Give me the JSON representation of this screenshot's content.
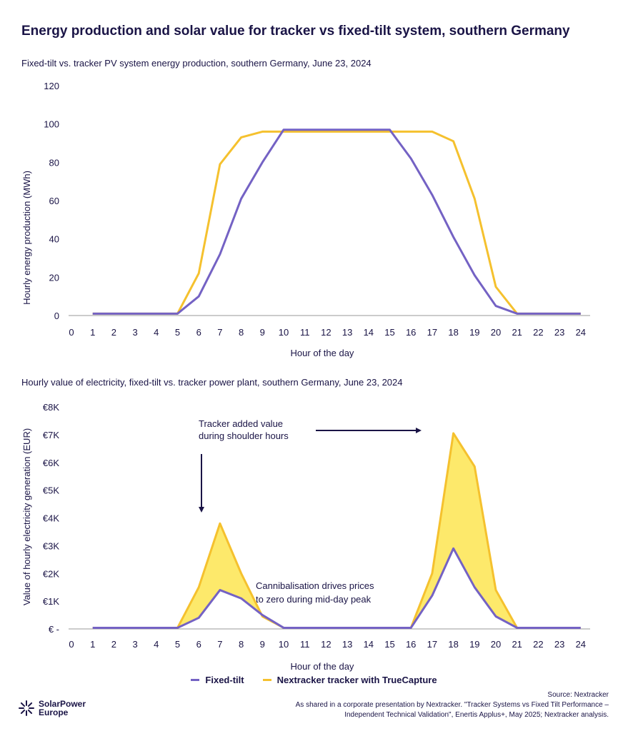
{
  "title": "Energy production and solar value for tracker vs fixed-tilt system, southern Germany",
  "colors": {
    "fixed": "#7462c4",
    "tracker": "#f5c12e",
    "fill": "#fde96b",
    "text": "#1a1446",
    "arrow": "#1a1446"
  },
  "legend": {
    "fixed": "Fixed-tilt",
    "tracker": "Nextracker tracker with TrueCapture"
  },
  "annotations": {
    "shoulder_line1": "Tracker added value",
    "shoulder_line2": "during shoulder hours",
    "cannibal_line1": "Cannibalisation drives prices",
    "cannibal_line2": "to zero during mid-day peak"
  },
  "source": {
    "line1": "Source: Nextracker",
    "line2": "As shared in a corporate presentation by Nextracker. \"Tracker Systems vs Fixed Tilt Performance –",
    "line3": "Independent Technical Validation\", Enertis Applus+, May 2025; Nextracker analysis."
  },
  "logo": {
    "line1": "SolarPower",
    "line2": "Europe",
    "icon": "sun-burst-icon"
  },
  "chart_data": [
    {
      "type": "line",
      "title": "Fixed-tilt vs. tracker PV system energy production, southern Germany, June 23, 2024",
      "xlabel": "Hour of the day",
      "ylabel": "Hourly energy production (MWh)",
      "ylim": [
        0,
        120
      ],
      "yticks": [
        0,
        20,
        40,
        60,
        80,
        100,
        120
      ],
      "ytick_labels": [
        "0",
        "20",
        "40",
        "60",
        "80",
        "100",
        "120"
      ],
      "xticks": [
        0,
        1,
        2,
        3,
        4,
        5,
        6,
        7,
        8,
        9,
        10,
        11,
        12,
        13,
        14,
        15,
        16,
        17,
        18,
        19,
        20,
        21,
        22,
        23,
        24
      ],
      "x": [
        1,
        2,
        3,
        4,
        5,
        6,
        7,
        8,
        9,
        10,
        11,
        12,
        13,
        14,
        15,
        16,
        17,
        18,
        19,
        20,
        21,
        22,
        23,
        24
      ],
      "series": [
        {
          "name": "Fixed-tilt",
          "values": [
            1,
            1,
            1,
            1,
            1,
            10,
            32,
            61,
            80,
            97,
            97,
            97,
            97,
            97,
            97,
            82,
            63,
            41,
            21,
            5,
            1,
            1,
            1,
            1
          ]
        },
        {
          "name": "Nextracker tracker with TrueCapture",
          "values": [
            1,
            1,
            1,
            1,
            1,
            22,
            79,
            93,
            96,
            96,
            96,
            96,
            96,
            96,
            96,
            96,
            96,
            91,
            61,
            15,
            1,
            1,
            1,
            1
          ]
        }
      ],
      "grid": false,
      "legend": "bottom-center"
    },
    {
      "type": "area",
      "title": "Hourly value of electricity, fixed-tilt vs. tracker power plant, southern Germany, June 23, 2024",
      "xlabel": "Hour of the day",
      "ylabel": "Value of hourly  electricity generation (EUR)",
      "ylim": [
        0,
        8000
      ],
      "yticks": [
        0,
        1000,
        2000,
        3000,
        4000,
        5000,
        6000,
        7000,
        8000
      ],
      "ytick_labels": [
        "€ -",
        "€1K",
        "€2K",
        "€3K",
        "€4K",
        "€5K",
        "€6K",
        "€7K",
        "€8K"
      ],
      "xticks": [
        0,
        1,
        2,
        3,
        4,
        5,
        6,
        7,
        8,
        9,
        10,
        11,
        12,
        13,
        14,
        15,
        16,
        17,
        18,
        19,
        20,
        21,
        22,
        23,
        24
      ],
      "x": [
        1,
        2,
        3,
        4,
        5,
        6,
        7,
        8,
        9,
        10,
        11,
        12,
        13,
        14,
        15,
        16,
        17,
        18,
        19,
        20,
        21,
        22,
        23,
        24
      ],
      "series": [
        {
          "name": "Fixed-tilt",
          "values": [
            40,
            40,
            40,
            40,
            40,
            400,
            1400,
            1100,
            500,
            40,
            40,
            40,
            40,
            40,
            40,
            40,
            1200,
            2900,
            1500,
            450,
            40,
            40,
            40,
            40
          ]
        },
        {
          "name": "Nextracker tracker with TrueCapture",
          "values": [
            40,
            40,
            40,
            40,
            40,
            1500,
            3800,
            2000,
            450,
            40,
            40,
            40,
            40,
            40,
            40,
            40,
            2000,
            7050,
            5850,
            1400,
            40,
            40,
            40,
            40
          ]
        }
      ],
      "grid": false,
      "legend": "bottom-center"
    }
  ]
}
